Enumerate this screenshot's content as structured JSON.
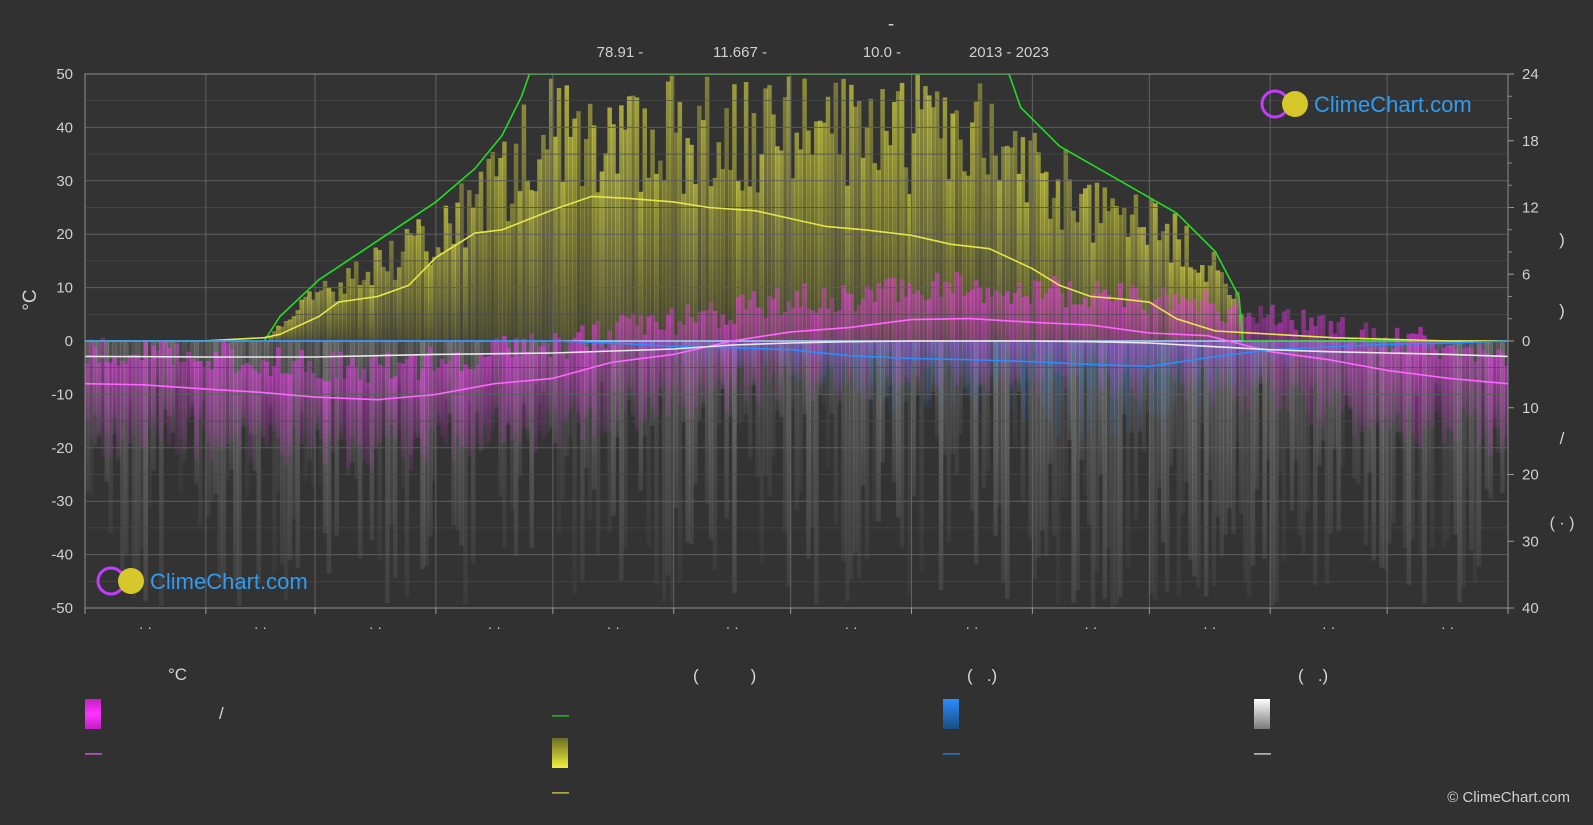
{
  "header": {
    "title": "-",
    "meta": [
      "78.91 -",
      "11.667 -",
      "10.0 -",
      "2013 - 2023"
    ]
  },
  "copyright": "© ClimeChart.com",
  "logo_text": "ClimeChart.com",
  "chart_data": {
    "type": "area",
    "left_axis": {
      "label": "°C",
      "min": -50,
      "max": 50,
      "ticks": [
        50,
        40,
        30,
        20,
        10,
        0,
        -10,
        -20,
        -30,
        -40,
        -50
      ]
    },
    "right_axis_top": {
      "label": ")",
      "label2": ")",
      "min": 0,
      "max": 24,
      "ticks": [
        24,
        18,
        12,
        6,
        0
      ]
    },
    "right_axis_bottom": {
      "label": "/",
      "label2": "( · )",
      "min": 0,
      "max": 40,
      "ticks": [
        0,
        10,
        20,
        30,
        40
      ]
    },
    "x_month_labels": [
      "· ·",
      "· ·",
      "· ·",
      "· ·",
      "· ·",
      "· ·",
      "· ·",
      "· ·",
      "· ·",
      "· ·",
      "· ·",
      "· ·"
    ],
    "x_tick_days": [
      0,
      31,
      59,
      90,
      120,
      151,
      181,
      212,
      243,
      273,
      304,
      334,
      365
    ],
    "series": [
      {
        "name": "daylight",
        "axis": "hours",
        "color": "#22dd22",
        "x": [
          0,
          46,
          50,
          60,
          75,
          90,
          100,
          107,
          112,
          114,
          123,
          220,
          237,
          240,
          250,
          265,
          280,
          290,
          296,
          297,
          365
        ],
        "values": [
          0,
          0,
          2.2,
          5.5,
          9,
          12.5,
          15.5,
          18.5,
          22,
          24,
          24,
          24,
          24,
          21,
          17.5,
          14.5,
          11.5,
          8,
          4,
          0,
          0
        ]
      },
      {
        "name": "sunshine",
        "axis": "hours",
        "color": "#e6e64a",
        "x": [
          0,
          15,
          30,
          46,
          50,
          60,
          65,
          75,
          83,
          90,
          100,
          107,
          120,
          130,
          140,
          151,
          160,
          172,
          181,
          190,
          200,
          212,
          222,
          232,
          243,
          250,
          258,
          265,
          273,
          280,
          290,
          300,
          310,
          320,
          330,
          340,
          350,
          365
        ],
        "values": [
          0,
          0,
          0,
          0.3,
          0.6,
          2.2,
          3.5,
          4,
          5,
          7.5,
          9.7,
          10,
          11.8,
          13,
          12.8,
          12.5,
          12,
          11.7,
          11,
          10.3,
          10,
          9.5,
          8.7,
          8.3,
          6.5,
          5,
          4,
          3.8,
          3.5,
          2,
          0.9,
          0.7,
          0.5,
          0.3,
          0.2,
          0.1,
          0,
          0
        ]
      },
      {
        "name": "temp-mean",
        "axis": "celsius",
        "color": "#ff66ff",
        "x": [
          0,
          15,
          31,
          45,
          59,
          75,
          90,
          105,
          120,
          135,
          151,
          166,
          181,
          196,
          212,
          227,
          243,
          258,
          273,
          288,
          304,
          319,
          334,
          350,
          365
        ],
        "values": [
          -8,
          -8.2,
          -9,
          -9.6,
          -10.5,
          -11,
          -10,
          -8,
          -7,
          -4,
          -2.5,
          0,
          1.7,
          2.5,
          4,
          4.2,
          3.5,
          3,
          1.5,
          1,
          -2,
          -3.5,
          -5.5,
          -7,
          -8
        ]
      },
      {
        "name": "rain",
        "axis": "mm",
        "color": "#2a8cff",
        "x": [
          0,
          31,
          59,
          90,
          120,
          135,
          151,
          166,
          181,
          196,
          212,
          227,
          243,
          258,
          273,
          288,
          304,
          319,
          334,
          350,
          365
        ],
        "values": [
          0,
          0,
          0,
          0,
          0,
          0.3,
          0.8,
          1,
          1.3,
          2.2,
          2.6,
          2.8,
          3.1,
          3.5,
          3.8,
          2.5,
          1.3,
          0.9,
          0.5,
          0.3,
          0
        ]
      },
      {
        "name": "snow",
        "axis": "mm",
        "color": "#e8e8e8",
        "x": [
          0,
          31,
          59,
          90,
          120,
          151,
          166,
          181,
          196,
          212,
          227,
          243,
          258,
          273,
          288,
          304,
          319,
          334,
          350,
          365
        ],
        "values": [
          2.3,
          2.4,
          2.4,
          2,
          1.8,
          1.2,
          0.6,
          0.3,
          0.1,
          0,
          0,
          0,
          0.1,
          0.3,
          0.8,
          1.3,
          1.6,
          1.8,
          2,
          2.3
        ]
      }
    ]
  },
  "legend": {
    "col1_title": "°C",
    "col1_row1_text": "/",
    "col2_title": "(           )",
    "col3_title": "(   .)",
    "col4_title": "(   .)",
    "dash": "—"
  },
  "colors": {
    "background": "#313131",
    "grid": "#5a5a5a",
    "axis": "#9a9a9a"
  }
}
